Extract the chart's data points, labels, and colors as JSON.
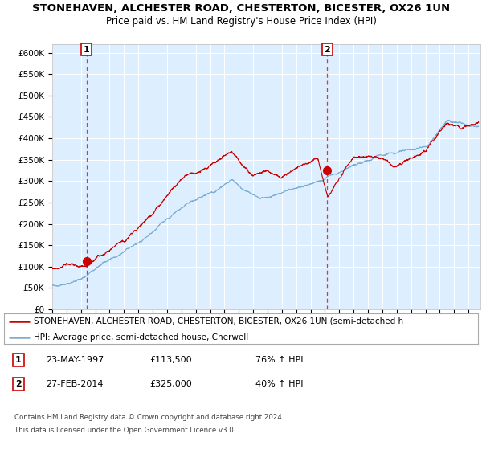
{
  "title": "STONEHAVEN, ALCHESTER ROAD, CHESTERTON, BICESTER, OX26 1UN",
  "subtitle": "Price paid vs. HM Land Registry's House Price Index (HPI)",
  "legend_line1": "STONEHAVEN, ALCHESTER ROAD, CHESTERTON, BICESTER, OX26 1UN (semi-detached h",
  "legend_line2": "HPI: Average price, semi-detached house, Cherwell",
  "footer1": "Contains HM Land Registry data © Crown copyright and database right 2024.",
  "footer2": "This data is licensed under the Open Government Licence v3.0.",
  "annotation1_label": "1",
  "annotation1_date": "23-MAY-1997",
  "annotation1_price": "£113,500",
  "annotation1_hpi": "76% ↑ HPI",
  "annotation2_label": "2",
  "annotation2_date": "27-FEB-2014",
  "annotation2_price": "£325,000",
  "annotation2_hpi": "40% ↑ HPI",
  "red_color": "#cc0000",
  "blue_color": "#7aadd4",
  "bg_color": "#ddeeff",
  "ylim": [
    0,
    620000
  ],
  "yticks": [
    0,
    50000,
    100000,
    150000,
    200000,
    250000,
    300000,
    350000,
    400000,
    450000,
    500000,
    550000,
    600000
  ],
  "ytick_labels": [
    "£0",
    "£50K",
    "£100K",
    "£150K",
    "£200K",
    "£250K",
    "£300K",
    "£350K",
    "£400K",
    "£450K",
    "£500K",
    "£550K",
    "£600K"
  ],
  "sale1_x": 1997.39,
  "sale1_y": 113500,
  "sale2_x": 2014.16,
  "sale2_y": 325000,
  "vline1_x": 1997.39,
  "vline2_x": 2014.16,
  "xmin": 1995.0,
  "xmax": 2024.83
}
